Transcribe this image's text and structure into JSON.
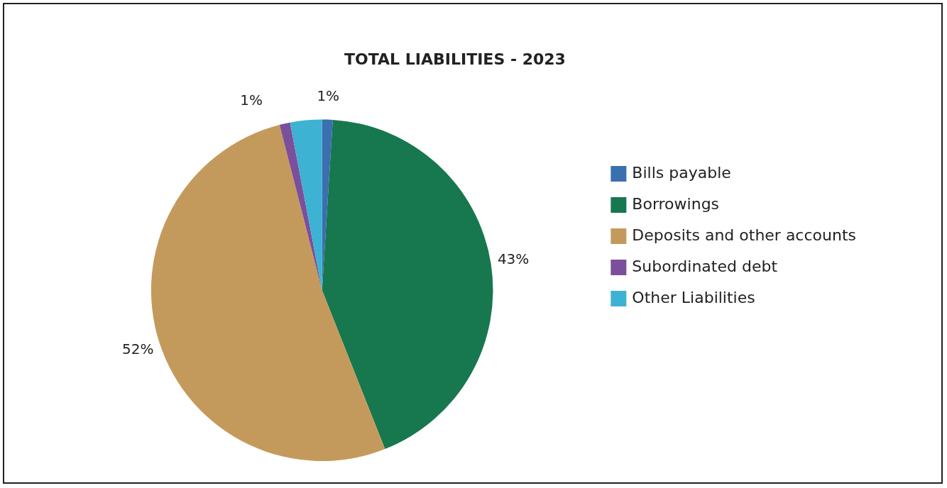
{
  "chart_data": {
    "type": "pie",
    "title": "TOTAL LIABILITIES - 2023",
    "categories": [
      "Bills payable",
      "Borrowings",
      "Deposits and other accounts",
      "Subordinated debt",
      "Other Liabilities"
    ],
    "values": [
      1,
      43,
      52,
      1,
      3
    ],
    "value_labels": [
      "1%",
      "43%",
      "52%",
      "1%",
      null
    ],
    "colors": [
      "#3a6fb0",
      "#17774f",
      "#c49a5c",
      "#7b4f9c",
      "#3db2d2"
    ],
    "legend": "right"
  }
}
